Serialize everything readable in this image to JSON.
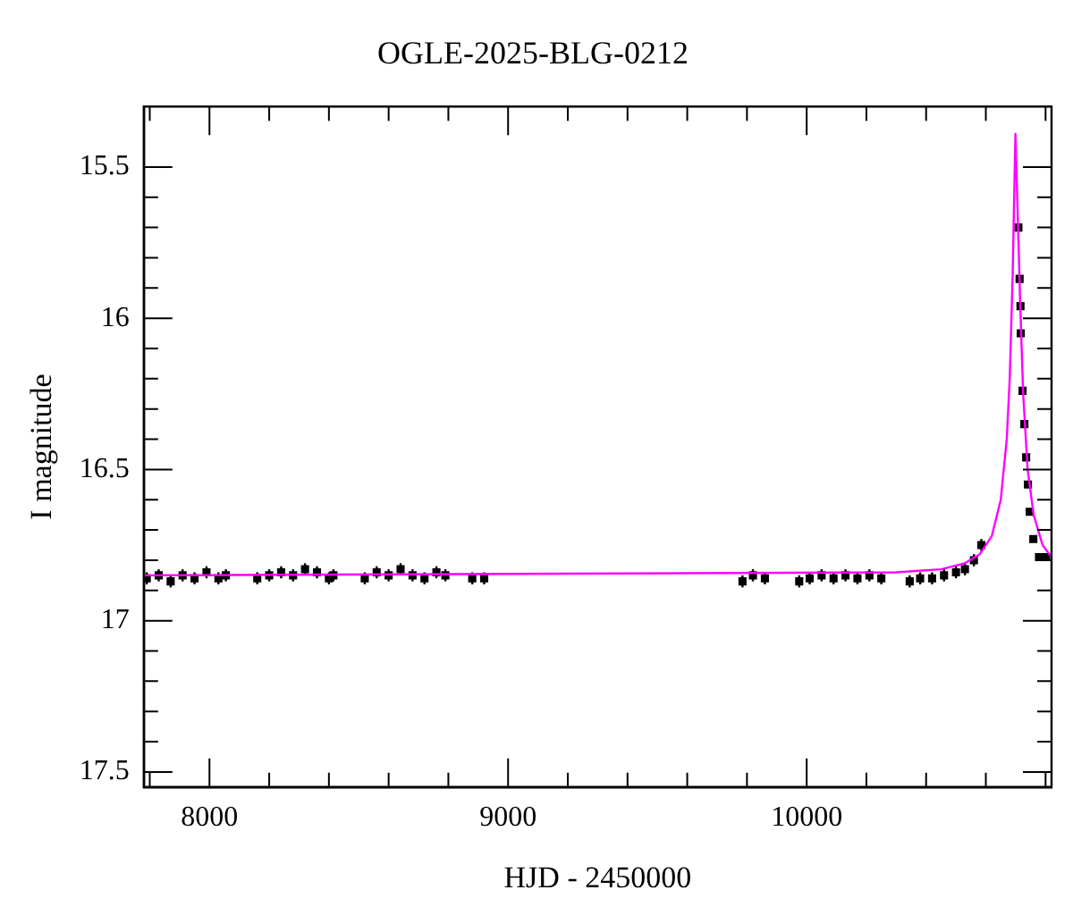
{
  "chart_data": {
    "type": "scatter",
    "title": "OGLE-2025-BLG-0212",
    "xlabel": "HJD - 2450000",
    "ylabel": "I magnitude",
    "xlim": [
      7780,
      10820
    ],
    "xticks": [
      {
        "value": 7800,
        "label": null
      },
      8000,
      {
        "value": 8200,
        "label": null
      },
      {
        "value": 8400,
        "label": null
      },
      {
        "value": 8600,
        "label": null
      },
      {
        "value": 8800,
        "label": null
      },
      9000,
      {
        "value": 9200,
        "label": null
      },
      {
        "value": 9400,
        "label": null
      },
      {
        "value": 9600,
        "label": null
      },
      {
        "value": 9800,
        "label": null
      },
      10000,
      {
        "value": 10200,
        "label": null
      },
      {
        "value": 10400,
        "label": null
      },
      {
        "value": 10600,
        "label": null
      },
      {
        "value": 10800,
        "label": null
      }
    ],
    "ylim": [
      17.55,
      15.3
    ],
    "yticks": [
      15.5,
      {
        "value": 15.6,
        "label": null
      },
      {
        "value": 15.7,
        "label": null
      },
      {
        "value": 15.8,
        "label": null
      },
      {
        "value": 15.9,
        "label": null
      },
      16,
      {
        "value": 16.1,
        "label": null
      },
      {
        "value": 16.2,
        "label": null
      },
      {
        "value": 16.3,
        "label": null
      },
      {
        "value": 16.4,
        "label": null
      },
      16.5,
      {
        "value": 16.6,
        "label": null
      },
      {
        "value": 16.7,
        "label": null
      },
      {
        "value": 16.8,
        "label": null
      },
      {
        "value": 16.9,
        "label": null
      },
      17,
      {
        "value": 17.1,
        "label": null
      },
      {
        "value": 17.2,
        "label": null
      },
      {
        "value": 17.3,
        "label": null
      },
      {
        "value": 17.4,
        "label": null
      },
      17.5
    ],
    "grid": false,
    "legend": false,
    "marker": "square",
    "series": [
      {
        "color": "#000000",
        "x": [
          7790,
          7830,
          7870,
          7910,
          7950,
          7990,
          8030,
          8055,
          8160,
          8200,
          8240,
          8280,
          8320,
          8360,
          8400,
          8415,
          8520,
          8560,
          8600,
          8640,
          8680,
          8720,
          8760,
          8790,
          8880,
          8920,
          9785,
          9820,
          9860,
          9975,
          10010,
          10050,
          10090,
          10130,
          10170,
          10210,
          10250,
          10345,
          10380,
          10420,
          10460,
          10500,
          10530,
          10560,
          10585,
          10709,
          10713,
          10716,
          10717,
          10723,
          10729,
          10735,
          10741,
          10747,
          10759,
          10778,
          10802
        ],
        "values": [
          16.86,
          16.85,
          16.87,
          16.85,
          16.86,
          16.84,
          16.86,
          16.85,
          16.86,
          16.85,
          16.84,
          16.85,
          16.83,
          16.84,
          16.86,
          16.85,
          16.86,
          16.84,
          16.85,
          16.83,
          16.85,
          16.86,
          16.84,
          16.85,
          16.86,
          16.86,
          16.87,
          16.85,
          16.86,
          16.87,
          16.86,
          16.85,
          16.86,
          16.85,
          16.86,
          16.85,
          16.86,
          16.87,
          16.86,
          16.86,
          16.85,
          16.84,
          16.83,
          16.8,
          16.75,
          15.7,
          15.87,
          15.96,
          16.05,
          16.24,
          16.35,
          16.46,
          16.55,
          16.64,
          16.73,
          16.79,
          16.79
        ],
        "errors": [
          0.02,
          0.02,
          0.02,
          0.02,
          0.02,
          0.02,
          0.02,
          0.02,
          0.02,
          0.02,
          0.02,
          0.02,
          0.02,
          0.02,
          0.02,
          0.02,
          0.02,
          0.02,
          0.02,
          0.02,
          0.02,
          0.02,
          0.02,
          0.02,
          0.02,
          0.02,
          0.02,
          0.02,
          0.02,
          0.02,
          0.02,
          0.02,
          0.02,
          0.02,
          0.02,
          0.02,
          0.02,
          0.02,
          0.02,
          0.02,
          0.02,
          0.02,
          0.02,
          0.02,
          0.02,
          0.01,
          0.01,
          0.01,
          0.01,
          0.01,
          0.01,
          0.01,
          0.01,
          0.01,
          0.01,
          0.01,
          0.01
        ]
      },
      {
        "type": "line",
        "color": "#ff00ff",
        "marker": "none",
        "x": [
          7780,
          10300,
          10450,
          10530,
          10580,
          10620,
          10650,
          10670,
          10680,
          10690,
          10699,
          10708,
          10715,
          10725,
          10740,
          10760,
          10790,
          10820
        ],
        "values": [
          16.85,
          16.84,
          16.83,
          16.81,
          16.78,
          16.72,
          16.6,
          16.4,
          16.2,
          15.85,
          15.39,
          15.7,
          15.95,
          16.25,
          16.5,
          16.65,
          16.75,
          16.79
        ]
      }
    ]
  }
}
